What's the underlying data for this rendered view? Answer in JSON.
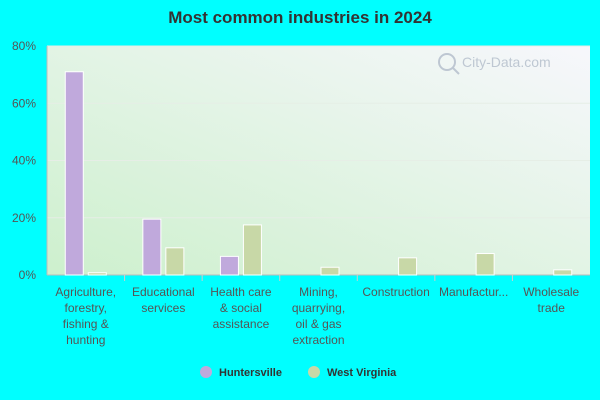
{
  "chart_data": {
    "type": "bar",
    "title": "Most common industries in 2024",
    "categories": [
      [
        "Agriculture,",
        "forestry,",
        "fishing &",
        "hunting"
      ],
      [
        "Educational",
        "services"
      ],
      [
        "Health care",
        "& social",
        "assistance"
      ],
      [
        "Mining,",
        "quarrying,",
        "oil & gas",
        "extraction"
      ],
      [
        "Construction"
      ],
      [
        "Manufactur..."
      ],
      [
        "Wholesale",
        "trade"
      ]
    ],
    "series": [
      {
        "name": "Huntersville",
        "color": "#c0a9dc",
        "values": [
          71,
          19.5,
          6.5,
          0,
          0,
          0,
          0
        ]
      },
      {
        "name": "West Virginia",
        "color": "#c8d8a7",
        "values": [
          0.8,
          9.5,
          17.5,
          2.7,
          6.0,
          7.5,
          1.8
        ]
      }
    ],
    "ylim": [
      0,
      80
    ],
    "yticks": [
      0,
      20,
      40,
      60,
      80
    ],
    "ytick_labels": [
      "0%",
      "20%",
      "40%",
      "60%",
      "80%"
    ],
    "xlabel": "",
    "ylabel": "",
    "grid": true,
    "legend_position": "bottom-center",
    "watermark": "City-Data.com",
    "colors": {
      "background": "#00ffff",
      "plot_bg_start": "#cdf0cd",
      "plot_bg_end": "#f7f7fc"
    }
  }
}
